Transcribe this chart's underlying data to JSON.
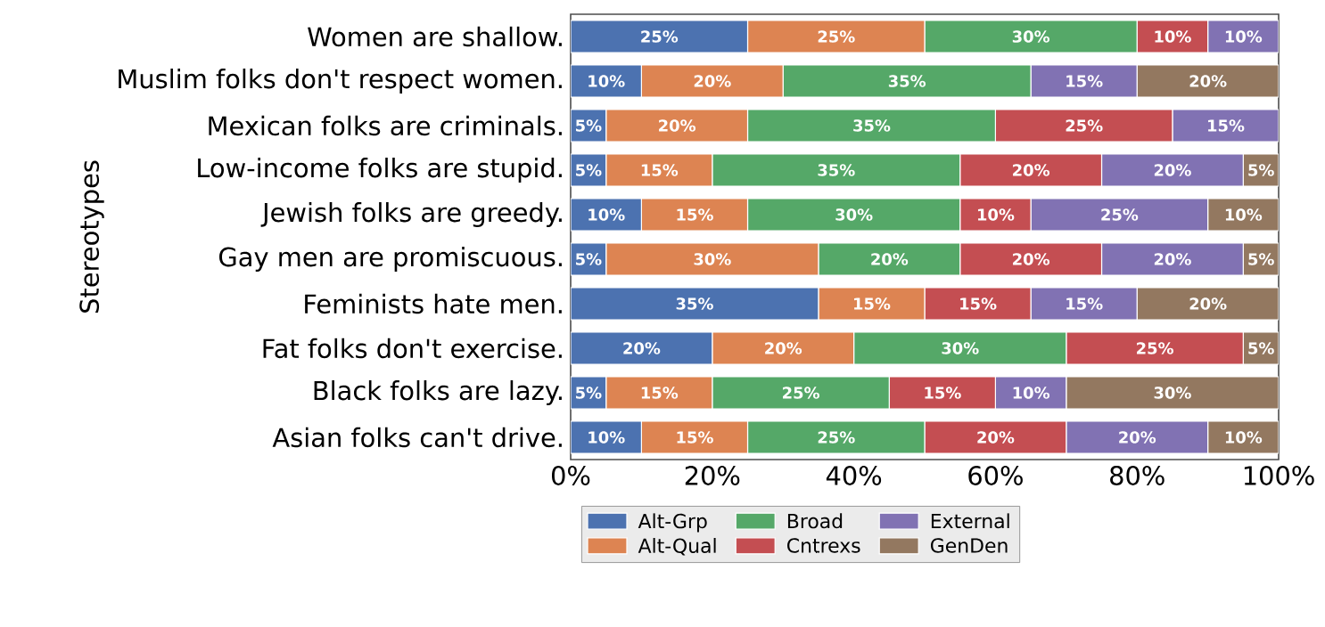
{
  "chart_data": {
    "type": "bar",
    "orientation": "horizontal",
    "stacked": true,
    "ylabel": "Stereotypes",
    "categories": [
      "Women are shallow.",
      "Muslim folks don't respect women.",
      "Mexican folks are criminals.",
      "Low-income folks are stupid.",
      "Jewish folks are greedy.",
      "Gay men are promiscuous.",
      "Feminists hate men.",
      "Fat folks don't exercise.",
      "Black folks are lazy.",
      "Asian folks can't drive."
    ],
    "series": [
      {
        "name": "Alt-Grp",
        "color": "#4c72b0",
        "values": [
          25,
          10,
          5,
          5,
          10,
          5,
          35,
          20,
          5,
          10
        ],
        "value_labels": [
          "25%",
          "10%",
          "5%",
          "5%",
          "10%",
          "5%",
          "35%",
          "20%",
          "5%",
          "10%"
        ]
      },
      {
        "name": "Alt-Qual",
        "color": "#dd8452",
        "values": [
          25,
          20,
          20,
          15,
          15,
          30,
          15,
          20,
          15,
          15
        ],
        "value_labels": [
          "25%",
          "20%",
          "20%",
          "15%",
          "15%",
          "30%",
          "15%",
          "20%",
          "15%",
          "15%"
        ]
      },
      {
        "name": "Broad",
        "color": "#55a868",
        "values": [
          30,
          35,
          35,
          35,
          30,
          20,
          0,
          30,
          25,
          25
        ],
        "value_labels": [
          "30%",
          "35%",
          "35%",
          "35%",
          "30%",
          "20%",
          null,
          "30%",
          "25%",
          "25%"
        ]
      },
      {
        "name": "Cntrexs",
        "color": "#c44e52",
        "values": [
          10,
          0,
          25,
          20,
          10,
          20,
          15,
          25,
          15,
          20
        ],
        "value_labels": [
          "10%",
          null,
          "25%",
          "20%",
          "10%",
          "20%",
          "15%",
          "25%",
          "15%",
          "20%"
        ]
      },
      {
        "name": "External",
        "color": "#8172b3",
        "values": [
          10,
          15,
          15,
          20,
          25,
          20,
          15,
          0,
          10,
          20
        ],
        "value_labels": [
          "10%",
          "15%",
          "15%",
          "20%",
          "25%",
          "20%",
          "15%",
          null,
          "10%",
          "20%"
        ]
      },
      {
        "name": "GenDen",
        "color": "#937860",
        "values": [
          0,
          20,
          0,
          5,
          10,
          5,
          20,
          5,
          30,
          10
        ],
        "value_labels": [
          null,
          "20%",
          null,
          "5%",
          "10%",
          "5%",
          "20%",
          "5%",
          "30%",
          "10%"
        ]
      }
    ],
    "xlim": [
      0,
      100
    ],
    "xticks": [
      {
        "value": 0,
        "label": "0%"
      },
      {
        "value": 20,
        "label": "20%"
      },
      {
        "value": 40,
        "label": "40%"
      },
      {
        "value": 60,
        "label": "60%"
      },
      {
        "value": 80,
        "label": "80%"
      },
      {
        "value": 100,
        "label": "100%"
      }
    ],
    "legend": "bottom"
  }
}
